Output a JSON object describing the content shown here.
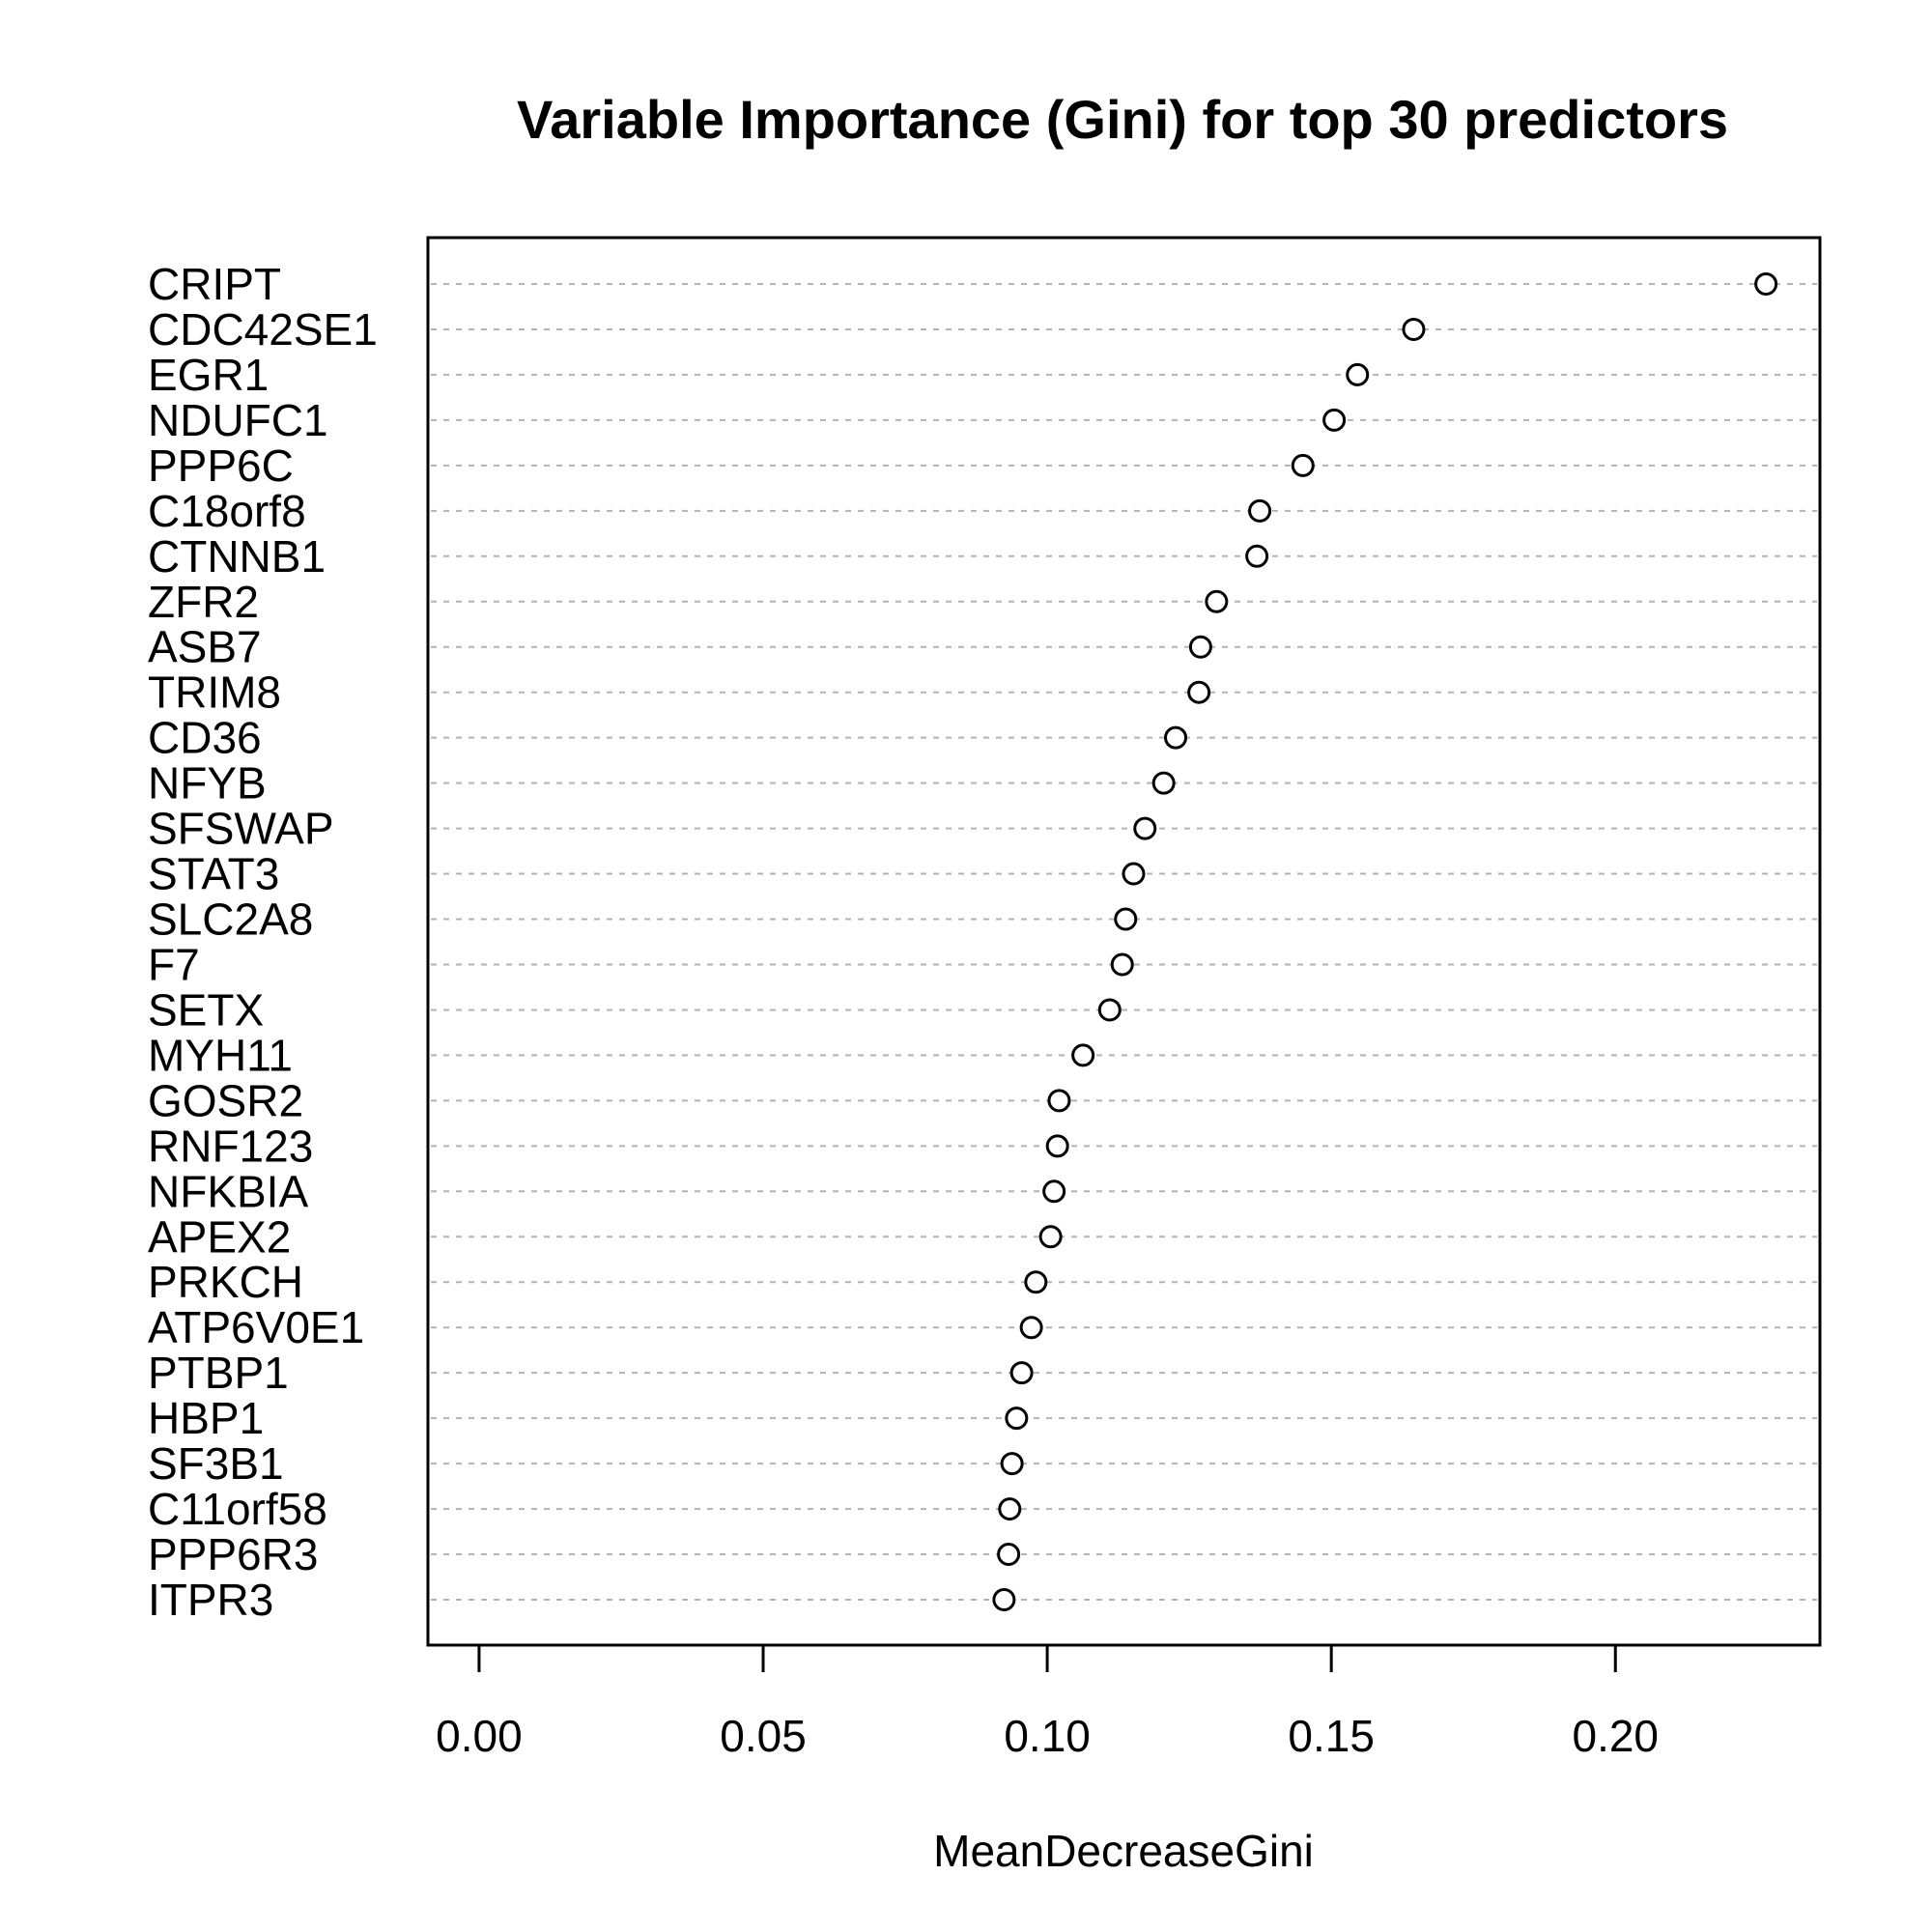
{
  "chart_data": {
    "type": "scatter",
    "title": "Variable Importance (Gini) for top 30 predictors",
    "xlabel": "MeanDecreaseGini",
    "ylabel": "",
    "xlim": [
      -0.009,
      0.236
    ],
    "xticks": [
      0.0,
      0.05,
      0.1,
      0.15,
      0.2
    ],
    "xtick_labels": [
      "0.00",
      "0.05",
      "0.10",
      "0.15",
      "0.20"
    ],
    "grid": "dotted horizontal guide per category",
    "legend": "none",
    "categories": [
      "CRIPT",
      "CDC42SE1",
      "EGR1",
      "NDUFC1",
      "PPP6C",
      "C18orf8",
      "CTNNB1",
      "ZFR2",
      "ASB7",
      "TRIM8",
      "CD36",
      "NFYB",
      "SFSWAP",
      "STAT3",
      "SLC2A8",
      "F7",
      "SETX",
      "MYH11",
      "GOSR2",
      "RNF123",
      "NFKBIA",
      "APEX2",
      "PRKCH",
      "ATP6V0E1",
      "PTBP1",
      "HBP1",
      "SF3B1",
      "C11orf58",
      "PPP6R3",
      "ITPR3"
    ],
    "values": [
      0.2265,
      0.1645,
      0.1546,
      0.1505,
      0.145,
      0.1374,
      0.1369,
      0.1298,
      0.127,
      0.1267,
      0.1226,
      0.1205,
      0.1172,
      0.1152,
      0.1138,
      0.1132,
      0.111,
      0.1063,
      0.1021,
      0.1018,
      0.1012,
      0.1006,
      0.098,
      0.0972,
      0.0955,
      0.0946,
      0.0938,
      0.0934,
      0.0932,
      0.0924
    ]
  }
}
